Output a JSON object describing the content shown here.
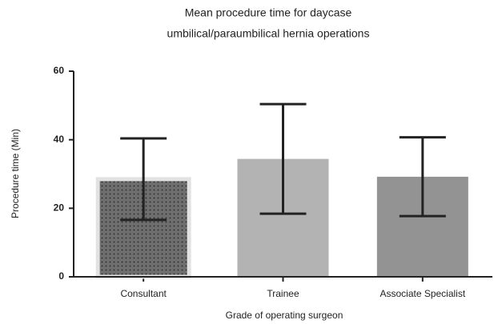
{
  "chart_data": {
    "type": "bar",
    "title": [
      "Mean procedure time for daycase",
      "umbilical/paraumbilical hernia operations"
    ],
    "x_label": "Grade of operating surgeon",
    "y_label": "Procedure time (Min)",
    "categories": [
      "Consultant",
      "Trainee",
      "Associate Specialist"
    ],
    "values": [
      28.5,
      34.4,
      29.2
    ],
    "errors": [
      11.9,
      16,
      11.5
    ],
    "colors": [
      "#6e6e6e",
      "#b3b3b3",
      "#939393"
    ],
    "patterns": [
      "dots",
      "none",
      "none"
    ],
    "ylim": [
      0,
      60
    ],
    "yticks": [
      0,
      20,
      40,
      60
    ],
    "grid": false
  }
}
